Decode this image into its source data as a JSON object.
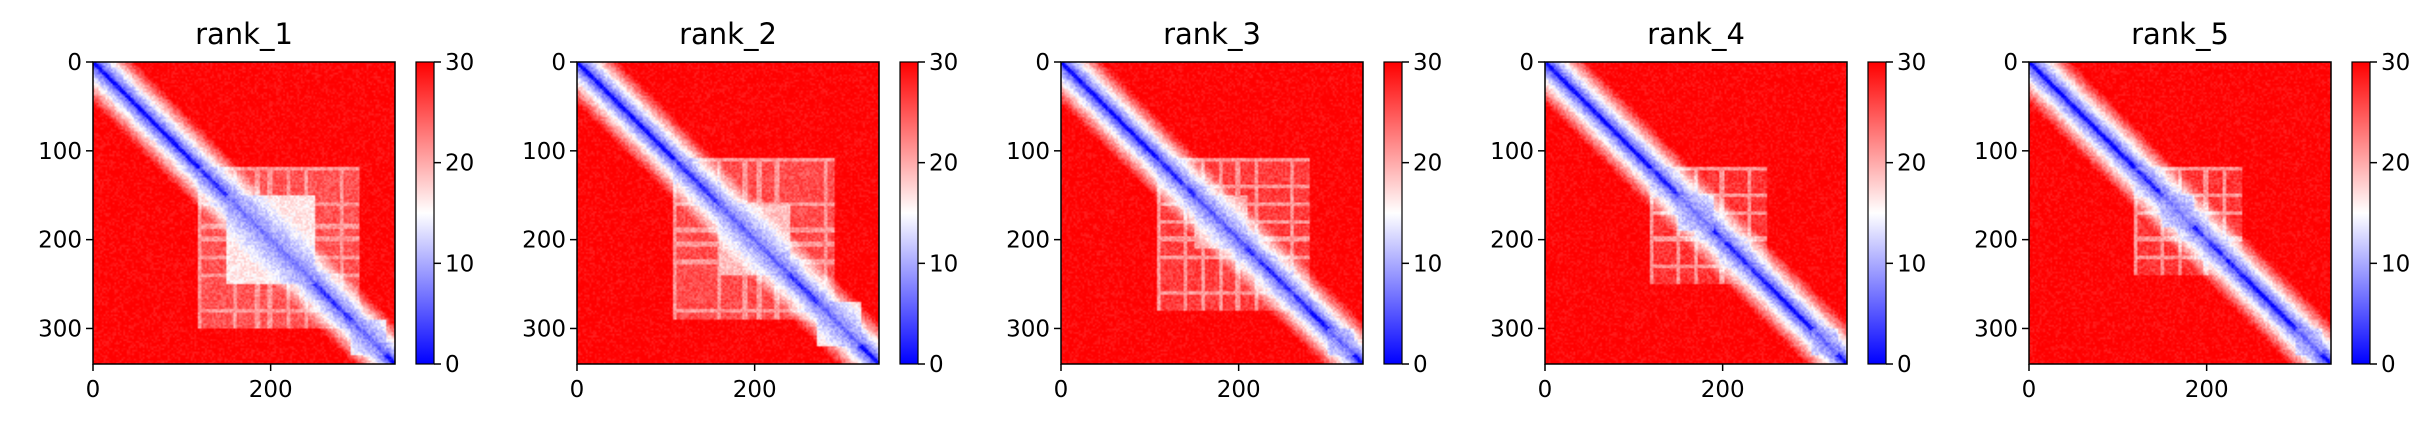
{
  "chart_data": [
    {
      "type": "heatmap",
      "title": "rank_1",
      "n": 340,
      "xlim": [
        0,
        340
      ],
      "ylim": [
        340,
        0
      ],
      "xticks": [
        0,
        200
      ],
      "yticks": [
        0,
        100,
        200,
        300
      ],
      "colorbar": {
        "ticks": [
          0,
          10,
          20,
          30
        ],
        "vmin": 0,
        "vmax": 30,
        "colormap": "bwr"
      },
      "features": {
        "diagonal_band": true,
        "blue_domain": {
          "x": [
            120,
            300
          ],
          "y": [
            120,
            300
          ],
          "intensity": 0.55
        },
        "core_block": {
          "x": [
            150,
            250
          ],
          "y": [
            150,
            250
          ],
          "intensity": 0.85
        },
        "stripes_at": [
          120,
          160,
          185,
          200,
          220,
          240,
          280
        ],
        "end_block": {
          "x": [
            290,
            330
          ],
          "y": [
            290,
            330
          ]
        }
      }
    },
    {
      "type": "heatmap",
      "title": "rank_2",
      "n": 340,
      "xlim": [
        0,
        340
      ],
      "ylim": [
        340,
        0
      ],
      "xticks": [
        0,
        200
      ],
      "yticks": [
        0,
        100,
        200,
        300
      ],
      "colorbar": {
        "ticks": [
          0,
          10,
          20,
          30
        ],
        "vmin": 0,
        "vmax": 30,
        "colormap": "bwr"
      },
      "features": {
        "diagonal_band": true,
        "blue_domain": {
          "x": [
            110,
            290
          ],
          "y": [
            110,
            290
          ],
          "intensity": 0.5
        },
        "core_block": {
          "x": [
            160,
            240
          ],
          "y": [
            160,
            240
          ],
          "intensity": 0.7
        },
        "stripes_at": [
          110,
          160,
          190,
          205,
          225,
          280
        ],
        "end_block": {
          "x": [
            270,
            320
          ],
          "y": [
            270,
            320
          ]
        }
      }
    },
    {
      "type": "heatmap",
      "title": "rank_3",
      "n": 340,
      "xlim": [
        0,
        340
      ],
      "ylim": [
        340,
        0
      ],
      "xticks": [
        0,
        200
      ],
      "yticks": [
        0,
        100,
        200,
        300
      ],
      "colorbar": {
        "ticks": [
          0,
          10,
          20,
          30
        ],
        "vmin": 0,
        "vmax": 30,
        "colormap": "bwr"
      },
      "features": {
        "diagonal_band": true,
        "blue_domain": {
          "x": [
            110,
            280
          ],
          "y": [
            110,
            280
          ],
          "intensity": 0.4
        },
        "core_block": {
          "x": [
            150,
            210
          ],
          "y": [
            150,
            210
          ],
          "intensity": 0.6
        },
        "stripes_at": [
          110,
          140,
          160,
          180,
          200,
          220,
          260
        ],
        "end_block": {
          "x": [
            300,
            330
          ],
          "y": [
            300,
            330
          ]
        }
      }
    },
    {
      "type": "heatmap",
      "title": "rank_4",
      "n": 340,
      "xlim": [
        0,
        340
      ],
      "ylim": [
        340,
        0
      ],
      "xticks": [
        0,
        200
      ],
      "yticks": [
        0,
        100,
        200,
        300
      ],
      "colorbar": {
        "ticks": [
          0,
          10,
          20,
          30
        ],
        "vmin": 0,
        "vmax": 30,
        "colormap": "bwr"
      },
      "features": {
        "diagonal_band": true,
        "blue_domain": {
          "x": [
            120,
            250
          ],
          "y": [
            120,
            250
          ],
          "intensity": 0.35
        },
        "core_block": {
          "x": [
            150,
            190
          ],
          "y": [
            150,
            190
          ],
          "intensity": 0.9
        },
        "stripes_at": [
          120,
          150,
          170,
          200,
          230
        ],
        "end_block": {
          "x": [
            300,
            330
          ],
          "y": [
            300,
            330
          ]
        }
      }
    },
    {
      "type": "heatmap",
      "title": "rank_5",
      "n": 340,
      "xlim": [
        0,
        340
      ],
      "ylim": [
        340,
        0
      ],
      "xticks": [
        0,
        200
      ],
      "yticks": [
        0,
        100,
        200,
        300
      ],
      "colorbar": {
        "ticks": [
          0,
          10,
          20,
          30
        ],
        "vmin": 0,
        "vmax": 30,
        "colormap": "bwr"
      },
      "features": {
        "diagonal_band": true,
        "blue_domain": {
          "x": [
            120,
            240
          ],
          "y": [
            120,
            240
          ],
          "intensity": 0.35
        },
        "core_block": {
          "x": [
            150,
            185
          ],
          "y": [
            150,
            185
          ],
          "intensity": 0.9
        },
        "stripes_at": [
          120,
          150,
          170,
          200,
          220
        ],
        "end_block": {
          "x": [
            300,
            330
          ],
          "y": [
            300,
            330
          ]
        }
      }
    }
  ]
}
